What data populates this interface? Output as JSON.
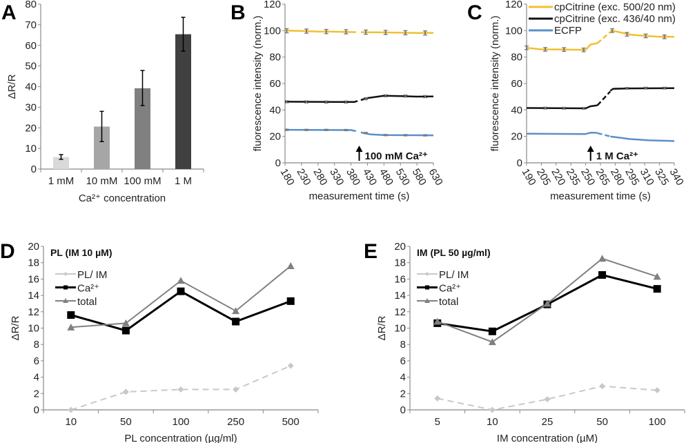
{
  "chart_data": [
    {
      "panel": "A",
      "type": "bar",
      "categories": [
        "1 mM",
        "10 mM",
        "100 mM",
        "1 M"
      ],
      "values": [
        5.8,
        20.6,
        39.2,
        65.4
      ],
      "error_low": [
        4.7,
        13.3,
        30.8,
        57.2
      ],
      "error_high": [
        7.0,
        28.0,
        47.8,
        73.6
      ],
      "bar_colors": [
        "#d9d9d9",
        "#a6a6a6",
        "#808080",
        "#404040"
      ],
      "xlabel": "Ca²⁺ concentration",
      "ylabel": "ΔR/R",
      "ylim": [
        0,
        80
      ],
      "yticks": [
        0,
        10,
        20,
        30,
        40,
        50,
        60,
        70,
        80
      ],
      "grid": false
    },
    {
      "panel": "B",
      "type": "line",
      "xlabel": "measurement time (s)",
      "ylabel": "fluorescence intensity (norm.)",
      "xlim": [
        180,
        630
      ],
      "ylim": [
        0,
        120
      ],
      "xticks": [
        180,
        230,
        280,
        330,
        380,
        430,
        480,
        530,
        580,
        630
      ],
      "yticks": [
        0,
        20,
        40,
        60,
        80,
        100,
        120
      ],
      "annotation": {
        "text": "100 mM Ca²⁺",
        "x": 405
      },
      "grid": false,
      "series": [
        {
          "color": "#f0c030",
          "segments": [
            {
              "dashed": false,
              "points": [
                [
                  180,
                  100
                ],
                [
                  230,
                  99.7
                ],
                [
                  280,
                  99.3
                ],
                [
                  330,
                  99.2
                ],
                [
                  395,
                  98.8
                ]
              ]
            },
            {
              "dashed": false,
              "points": [
                [
                  410,
                  98.8
                ],
                [
                  480,
                  98.6
                ],
                [
                  530,
                  98.4
                ],
                [
                  580,
                  98.2
                ],
                [
                  630,
                  98.3
                ]
              ]
            }
          ],
          "markers": {
            "x": [
              185,
              245,
              305,
              365,
              425,
              485,
              545,
              605
            ],
            "y": [
              99.9,
              99.6,
              99.3,
              99.1,
              98.8,
              98.6,
              98.4,
              98.2
            ],
            "err": 1.6
          }
        },
        {
          "color": "#111111",
          "segments": [
            {
              "dashed": false,
              "points": [
                [
                  180,
                  46.2
                ],
                [
                  330,
                  46
                ],
                [
                  390,
                  46
                ],
                [
                  400,
                  46.8
                ]
              ]
            },
            {
              "dashed": false,
              "points": [
                [
                  410,
                  47.5
                ],
                [
                  430,
                  49
                ],
                [
                  480,
                  50.7
                ],
                [
                  530,
                  50.5
                ],
                [
                  580,
                  50.1
                ],
                [
                  630,
                  50.2
                ]
              ]
            }
          ],
          "markers": {
            "x": [
              185,
              245,
              305,
              365,
              425,
              485,
              545,
              605
            ],
            "y": [
              46.2,
              46.1,
              46,
              46,
              48.5,
              50.7,
              50.5,
              50.1
            ],
            "err": 0.8
          }
        },
        {
          "color": "#5b8fc9",
          "segments": [
            {
              "dashed": false,
              "points": [
                [
                  180,
                  25
                ],
                [
                  380,
                  24.8
                ],
                [
                  395,
                  24
                ]
              ]
            },
            {
              "dashed": false,
              "points": [
                [
                  410,
                  23
                ],
                [
                  440,
                  21.5
                ],
                [
                  480,
                  21
                ],
                [
                  630,
                  20.8
                ]
              ]
            }
          ],
          "markers": {
            "x": [
              185,
              245,
              305,
              365,
              425,
              485,
              545,
              605
            ],
            "y": [
              25,
              24.9,
              24.9,
              24.8,
              22.5,
              21,
              20.9,
              20.8
            ],
            "err": 0.5
          }
        }
      ]
    },
    {
      "panel": "C",
      "type": "line",
      "xlabel": "measurement time (s)",
      "ylabel": "fluorescence intensity (norm.)",
      "xlim": [
        190,
        340
      ],
      "ylim": [
        0,
        120
      ],
      "xticks": [
        190,
        205,
        220,
        235,
        250,
        265,
        280,
        295,
        310,
        325,
        340
      ],
      "yticks": [
        0,
        20,
        40,
        60,
        80,
        100,
        120
      ],
      "annotation": {
        "text": "1 M Ca²⁺",
        "x": 255
      },
      "legend_position": "top-right",
      "grid": false,
      "series": [
        {
          "name": "cpCitrine (exc. 500/20 nm)",
          "color": "#f0c030",
          "segments": [
            {
              "dashed": false,
              "points": [
                [
                  190,
                  87
                ],
                [
                  205,
                  85.8
                ],
                [
                  220,
                  85.8
                ],
                [
                  250,
                  85.4
                ],
                [
                  255,
                  89.5
                ],
                [
                  262,
                  90.5
                ]
              ]
            },
            {
              "dashed": true,
              "points": [
                [
                  262,
                  90.5
                ],
                [
                  275,
                  99
                ]
              ]
            },
            {
              "dashed": false,
              "points": [
                [
                  275,
                  99.5
                ],
                [
                  277,
                  100
                ],
                [
                  295,
                  97
                ],
                [
                  310,
                  96
                ],
                [
                  325,
                  95.3
                ],
                [
                  340,
                  95.3
                ]
              ]
            }
          ],
          "markers": {
            "x": [
              190,
              209,
              228,
              248,
              277,
              292,
              311,
              330
            ],
            "y": [
              87,
              85.8,
              85.7,
              85.4,
              100,
              97.2,
              96,
              95.3
            ],
            "err": 1.4
          }
        },
        {
          "name": "cpCitrine (exc. 436/40 nm)",
          "color": "#111111",
          "segments": [
            {
              "dashed": false,
              "points": [
                [
                  190,
                  41.5
                ],
                [
                  250,
                  41.2
                ],
                [
                  255,
                  42.8
                ],
                [
                  262,
                  43.5
                ]
              ]
            },
            {
              "dashed": true,
              "points": [
                [
                  262,
                  43.5
                ],
                [
                  275,
                  54
                ]
              ]
            },
            {
              "dashed": false,
              "points": [
                [
                  275,
                  54.5
                ],
                [
                  278,
                  56
                ],
                [
                  295,
                  56.3
                ],
                [
                  340,
                  56.5
                ]
              ]
            }
          ],
          "markers": {
            "x": [
              209,
              228,
              248,
              292,
              311,
              330
            ],
            "y": [
              41.4,
              41.3,
              41.2,
              56.3,
              56.5,
              56.5
            ],
            "err": 0.7
          }
        },
        {
          "name": "ECFP",
          "color": "#5b8fc9",
          "segments": [
            {
              "dashed": false,
              "points": [
                [
                  190,
                  22
                ],
                [
                  250,
                  21.8
                ],
                [
                  255,
                  22.8
                ],
                [
                  262,
                  22.7
                ]
              ]
            },
            {
              "dashed": true,
              "points": [
                [
                  262,
                  22.5
                ],
                [
                  275,
                  20
                ]
              ]
            },
            {
              "dashed": false,
              "points": [
                [
                  275,
                  20
                ],
                [
                  295,
                  18
                ],
                [
                  315,
                  17
                ],
                [
                  340,
                  16.5
                ]
              ]
            }
          ],
          "markers": {
            "x": [],
            "y": [],
            "err": 0
          }
        }
      ]
    },
    {
      "panel": "D",
      "type": "line",
      "title": "PL (IM 10 µM)",
      "xlabel": "PL concentration (µg/ml)",
      "ylabel": "ΔR/R",
      "categories": [
        "10",
        "50",
        "100",
        "250",
        "500"
      ],
      "ylim": [
        0,
        20
      ],
      "yticks": [
        0,
        2,
        4,
        6,
        8,
        10,
        12,
        14,
        16,
        18,
        20
      ],
      "legend_position": "top-left",
      "grid": false,
      "series": [
        {
          "name": "PL/ IM",
          "color": "#c8c8c8",
          "dashed": true,
          "marker": "diamond",
          "values": [
            0,
            2.2,
            2.5,
            2.5,
            5.4
          ]
        },
        {
          "name": "Ca²⁺",
          "color": "#000000",
          "dashed": false,
          "marker": "square",
          "values": [
            11.6,
            9.7,
            14.5,
            10.8,
            13.3
          ]
        },
        {
          "name": "total",
          "color": "#808080",
          "dashed": false,
          "marker": "triangle",
          "values": [
            10.1,
            10.6,
            15.8,
            12.1,
            17.6
          ]
        }
      ]
    },
    {
      "panel": "E",
      "type": "line",
      "title": "IM (PL 50 µg/ml)",
      "xlabel": "IM concentration (µM)",
      "ylabel": "ΔR/R",
      "categories": [
        "5",
        "10",
        "25",
        "50",
        "100"
      ],
      "ylim": [
        0,
        20
      ],
      "yticks": [
        0,
        2,
        4,
        6,
        8,
        10,
        12,
        14,
        16,
        18,
        20
      ],
      "legend_position": "top-left",
      "grid": false,
      "series": [
        {
          "name": "PL/ IM",
          "color": "#c8c8c8",
          "dashed": true,
          "marker": "diamond",
          "values": [
            1.4,
            0,
            1.3,
            2.9,
            2.4
          ]
        },
        {
          "name": "Ca²⁺",
          "color": "#000000",
          "dashed": false,
          "marker": "square",
          "values": [
            10.6,
            9.6,
            12.9,
            16.5,
            14.8
          ]
        },
        {
          "name": "total",
          "color": "#808080",
          "dashed": false,
          "marker": "triangle",
          "values": [
            10.8,
            8.3,
            13.0,
            18.5,
            16.3
          ]
        }
      ]
    }
  ]
}
